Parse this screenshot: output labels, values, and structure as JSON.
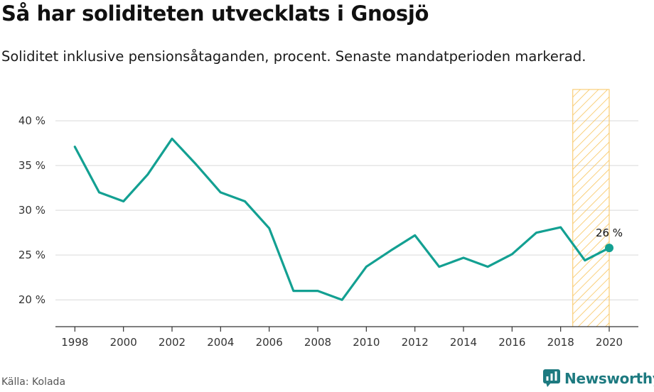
{
  "header": {
    "title": "Så har soliditeten utvecklats i Gnosjö",
    "subtitle": "Soliditet inklusive pensionsåtaganden, procent. Senaste mandatperioden markerad."
  },
  "footer": {
    "source": "Källa: Kolada",
    "brand": "Newsworthy",
    "brand_icon": "newsworthy-logo-icon"
  },
  "colors": {
    "line": "#13a092",
    "highlight": "#f9c45c",
    "grid": "#d9d9d9",
    "axis": "#333333",
    "brand": "#1d7a80"
  },
  "chart_data": {
    "type": "line",
    "x": [
      1998,
      1999,
      2000,
      2001,
      2002,
      2003,
      2004,
      2005,
      2006,
      2007,
      2008,
      2009,
      2010,
      2011,
      2012,
      2013,
      2014,
      2015,
      2016,
      2017,
      2018,
      2019,
      2020
    ],
    "series": [
      {
        "values": [
          37.1,
          32.0,
          31.0,
          34.0,
          38.0,
          35.1,
          32.0,
          31.0,
          28.0,
          21.0,
          21.0,
          20.0,
          23.7,
          25.5,
          27.2,
          23.7,
          24.7,
          23.7,
          25.1,
          27.5,
          28.1,
          24.4,
          25.8
        ]
      }
    ],
    "xticks": [
      1998,
      2000,
      2002,
      2004,
      2006,
      2008,
      2010,
      2012,
      2014,
      2016,
      2018,
      2020
    ],
    "yticks": [
      20,
      25,
      30,
      35,
      40
    ],
    "ytick_labels": [
      "20 %",
      "25 %",
      "30 %",
      "35 %",
      "40 %"
    ],
    "xlim": [
      1997.2,
      2021.2
    ],
    "ylim": [
      17,
      43.5
    ],
    "highlight_range": [
      2018.5,
      2020
    ],
    "end_label": "26 %",
    "grid": "horizontal"
  }
}
